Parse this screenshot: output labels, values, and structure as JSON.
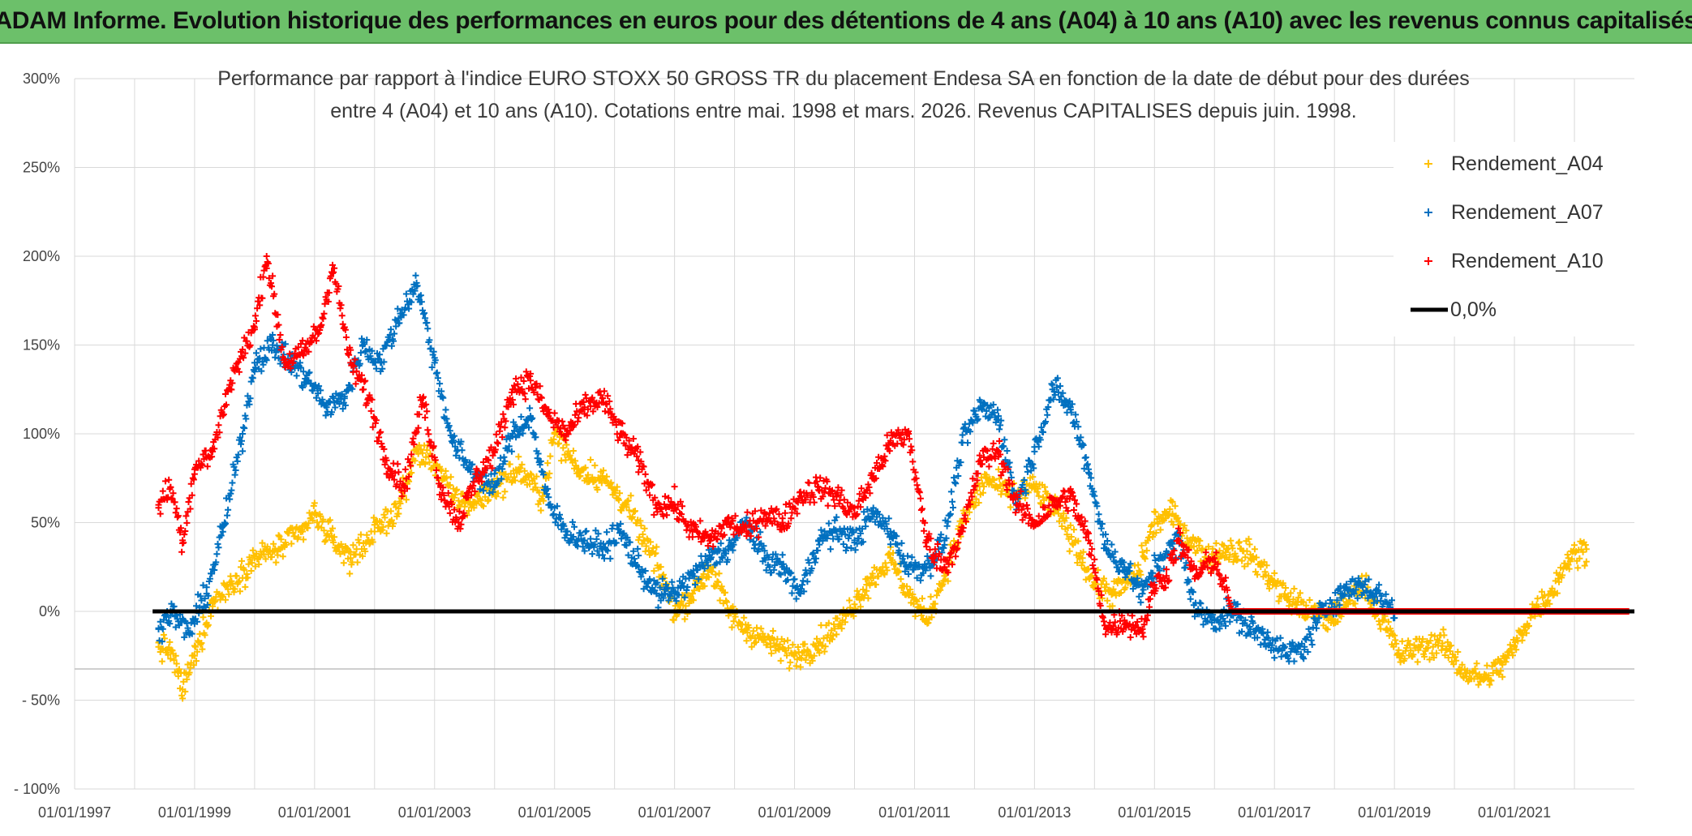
{
  "header": {
    "title": "ADAM Informe. Evolution historique des performances en euros pour des détentions de 4 ans (A04) à 10 ans (A10) avec les revenus connus capitalisés"
  },
  "colors": {
    "banner": "#6cc06a",
    "A04": "#ffc000",
    "A07": "#0070c0",
    "A10": "#ff0000",
    "zero": "#000000"
  },
  "chart_data": {
    "type": "scatter",
    "title_line1": "Performance par rapport à l'indice EURO STOXX 50 GROSS TR  du placement Endesa SA en fonction de la date de début pour des durées",
    "title_line2": "entre 4 (A04) et 10 ans (A10). Cotations entre mai. 1998 et mars. 2026. Revenus CAPITALISES depuis juin. 1998.",
    "xlabel": "",
    "ylabel": "",
    "xlim": [
      1997.0,
      2023.0
    ],
    "ylim": [
      -100,
      300
    ],
    "y_ticks": [
      {
        "value": 300,
        "label": "300%"
      },
      {
        "value": 250,
        "label": "250%"
      },
      {
        "value": 200,
        "label": "200%"
      },
      {
        "value": 150,
        "label": "150%"
      },
      {
        "value": 100,
        "label": "100%"
      },
      {
        "value": 50,
        "label": "50%"
      },
      {
        "value": 0,
        "label": "0%"
      },
      {
        "value": -50,
        "label": "- 50%"
      },
      {
        "value": -100,
        "label": "- 100%"
      }
    ],
    "x_ticks": [
      {
        "value": 1997,
        "label": "01/01/1997"
      },
      {
        "value": 1999,
        "label": "01/01/1999"
      },
      {
        "value": 2001,
        "label": "01/01/2001"
      },
      {
        "value": 2003,
        "label": "01/01/2003"
      },
      {
        "value": 2005,
        "label": "01/01/2005"
      },
      {
        "value": 2007,
        "label": "01/01/2007"
      },
      {
        "value": 2009,
        "label": "01/01/2009"
      },
      {
        "value": 2011,
        "label": "01/01/2011"
      },
      {
        "value": 2013,
        "label": "01/01/2013"
      },
      {
        "value": 2015,
        "label": "01/01/2015"
      },
      {
        "value": 2017,
        "label": "01/01/2017"
      },
      {
        "value": 2019,
        "label": "01/01/2019"
      },
      {
        "value": 2021,
        "label": "01/01/2021"
      }
    ],
    "series": [
      {
        "name": "Rendement_A04",
        "color": "#ffc000",
        "points": [
          [
            1998.4,
            -20
          ],
          [
            1998.6,
            -22
          ],
          [
            1998.8,
            -44
          ],
          [
            1999.0,
            -25
          ],
          [
            1999.3,
            5
          ],
          [
            1999.6,
            15
          ],
          [
            2000.0,
            30
          ],
          [
            2000.4,
            35
          ],
          [
            2000.8,
            45
          ],
          [
            2001.0,
            55
          ],
          [
            2001.3,
            40
          ],
          [
            2001.6,
            30
          ],
          [
            2002.0,
            45
          ],
          [
            2002.4,
            58
          ],
          [
            2002.7,
            90
          ],
          [
            2003.0,
            85
          ],
          [
            2003.3,
            65
          ],
          [
            2003.6,
            60
          ],
          [
            2004.0,
            70
          ],
          [
            2004.4,
            80
          ],
          [
            2004.8,
            65
          ],
          [
            2005.0,
            100
          ],
          [
            2005.4,
            80
          ],
          [
            2005.8,
            75
          ],
          [
            2006.2,
            60
          ],
          [
            2006.5,
            40
          ],
          [
            2006.8,
            20
          ],
          [
            2007.0,
            0
          ],
          [
            2007.3,
            10
          ],
          [
            2007.6,
            25
          ],
          [
            2007.9,
            0
          ],
          [
            2008.2,
            -10
          ],
          [
            2008.6,
            -18
          ],
          [
            2009.0,
            -25
          ],
          [
            2009.4,
            -18
          ],
          [
            2009.8,
            -5
          ],
          [
            2010.2,
            15
          ],
          [
            2010.6,
            30
          ],
          [
            2010.9,
            10
          ],
          [
            2011.2,
            -5
          ],
          [
            2011.5,
            20
          ],
          [
            2011.8,
            50
          ],
          [
            2012.2,
            75
          ],
          [
            2012.6,
            65
          ],
          [
            2013.0,
            70
          ],
          [
            2013.4,
            55
          ],
          [
            2013.8,
            30
          ],
          [
            2014.0,
            15
          ],
          [
            2014.3,
            10
          ],
          [
            2014.7,
            20
          ],
          [
            2015.0,
            50
          ],
          [
            2015.3,
            55
          ],
          [
            2015.6,
            40
          ],
          [
            2015.9,
            30
          ],
          [
            2016.2,
            35
          ],
          [
            2016.6,
            32
          ],
          [
            2016.9,
            20
          ],
          [
            2017.2,
            8
          ],
          [
            2017.6,
            0
          ],
          [
            2017.9,
            -5
          ],
          [
            2018.2,
            5
          ],
          [
            2018.5,
            15
          ],
          [
            2018.8,
            -5
          ],
          [
            2019.1,
            -25
          ],
          [
            2019.4,
            -20
          ],
          [
            2019.8,
            -18
          ],
          [
            2020.2,
            -35
          ],
          [
            2020.5,
            -38
          ],
          [
            2020.8,
            -30
          ],
          [
            2021.0,
            -20
          ],
          [
            2021.3,
            0
          ],
          [
            2021.6,
            10
          ],
          [
            2021.9,
            30
          ],
          [
            2022.2,
            35
          ]
        ]
      },
      {
        "name": "Rendement_A07",
        "color": "#0070c0",
        "points": [
          [
            1998.4,
            -10
          ],
          [
            1998.6,
            0
          ],
          [
            1998.9,
            -12
          ],
          [
            1999.2,
            10
          ],
          [
            1999.5,
            50
          ],
          [
            1999.8,
            100
          ],
          [
            2000.0,
            140
          ],
          [
            2000.3,
            150
          ],
          [
            2000.6,
            140
          ],
          [
            2000.9,
            130
          ],
          [
            2001.2,
            115
          ],
          [
            2001.5,
            120
          ],
          [
            2001.8,
            150
          ],
          [
            2002.1,
            140
          ],
          [
            2002.4,
            165
          ],
          [
            2002.7,
            185
          ],
          [
            2003.0,
            140
          ],
          [
            2003.3,
            95
          ],
          [
            2003.6,
            80
          ],
          [
            2004.0,
            70
          ],
          [
            2004.3,
            100
          ],
          [
            2004.6,
            110
          ],
          [
            2004.9,
            60
          ],
          [
            2005.2,
            45
          ],
          [
            2005.5,
            40
          ],
          [
            2005.8,
            35
          ],
          [
            2006.1,
            45
          ],
          [
            2006.4,
            25
          ],
          [
            2006.7,
            10
          ],
          [
            2007.0,
            10
          ],
          [
            2007.3,
            20
          ],
          [
            2007.6,
            30
          ],
          [
            2007.9,
            35
          ],
          [
            2008.2,
            50
          ],
          [
            2008.5,
            30
          ],
          [
            2008.8,
            25
          ],
          [
            2009.1,
            10
          ],
          [
            2009.4,
            40
          ],
          [
            2009.7,
            45
          ],
          [
            2010.0,
            40
          ],
          [
            2010.3,
            55
          ],
          [
            2010.6,
            45
          ],
          [
            2010.9,
            25
          ],
          [
            2011.2,
            25
          ],
          [
            2011.5,
            40
          ],
          [
            2011.8,
            95
          ],
          [
            2012.1,
            115
          ],
          [
            2012.4,
            110
          ],
          [
            2012.7,
            60
          ],
          [
            2013.0,
            90
          ],
          [
            2013.3,
            125
          ],
          [
            2013.6,
            115
          ],
          [
            2013.9,
            80
          ],
          [
            2014.2,
            35
          ],
          [
            2014.5,
            25
          ],
          [
            2014.8,
            10
          ],
          [
            2015.1,
            30
          ],
          [
            2015.4,
            40
          ],
          [
            2015.7,
            0
          ],
          [
            2016.0,
            -5
          ],
          [
            2016.3,
            0
          ],
          [
            2016.6,
            -10
          ],
          [
            2016.9,
            -15
          ],
          [
            2017.2,
            -25
          ],
          [
            2017.5,
            -20
          ],
          [
            2017.8,
            0
          ],
          [
            2018.1,
            10
          ],
          [
            2018.4,
            15
          ],
          [
            2018.7,
            10
          ],
          [
            2019.0,
            0
          ]
        ]
      },
      {
        "name": "Rendement_A10",
        "color": "#ff0000",
        "points": [
          [
            1998.4,
            60
          ],
          [
            1998.6,
            70
          ],
          [
            1998.8,
            40
          ],
          [
            1999.0,
            80
          ],
          [
            1999.3,
            90
          ],
          [
            1999.6,
            130
          ],
          [
            2000.0,
            160
          ],
          [
            2000.2,
            200
          ],
          [
            2000.5,
            140
          ],
          [
            2000.8,
            145
          ],
          [
            2001.1,
            160
          ],
          [
            2001.3,
            195
          ],
          [
            2001.6,
            140
          ],
          [
            2001.9,
            120
          ],
          [
            2002.2,
            85
          ],
          [
            2002.5,
            70
          ],
          [
            2002.8,
            120
          ],
          [
            2003.1,
            70
          ],
          [
            2003.4,
            50
          ],
          [
            2003.7,
            75
          ],
          [
            2004.0,
            90
          ],
          [
            2004.3,
            125
          ],
          [
            2004.6,
            130
          ],
          [
            2004.9,
            110
          ],
          [
            2005.2,
            100
          ],
          [
            2005.5,
            115
          ],
          [
            2005.8,
            120
          ],
          [
            2006.1,
            100
          ],
          [
            2006.4,
            85
          ],
          [
            2006.7,
            60
          ],
          [
            2007.0,
            60
          ],
          [
            2007.3,
            45
          ],
          [
            2007.6,
            40
          ],
          [
            2007.9,
            50
          ],
          [
            2008.2,
            45
          ],
          [
            2008.5,
            55
          ],
          [
            2008.8,
            50
          ],
          [
            2009.1,
            65
          ],
          [
            2009.4,
            70
          ],
          [
            2009.7,
            65
          ],
          [
            2010.0,
            55
          ],
          [
            2010.3,
            75
          ],
          [
            2010.6,
            95
          ],
          [
            2010.9,
            100
          ],
          [
            2011.2,
            40
          ],
          [
            2011.5,
            25
          ],
          [
            2011.8,
            45
          ],
          [
            2012.1,
            85
          ],
          [
            2012.4,
            90
          ],
          [
            2012.7,
            60
          ],
          [
            2013.0,
            50
          ],
          [
            2013.3,
            60
          ],
          [
            2013.6,
            65
          ],
          [
            2013.9,
            40
          ],
          [
            2014.2,
            -10
          ],
          [
            2014.5,
            -5
          ],
          [
            2014.8,
            -10
          ],
          [
            2015.0,
            15
          ],
          [
            2015.2,
            20
          ],
          [
            2015.4,
            40
          ],
          [
            2015.7,
            20
          ],
          [
            2016.0,
            30
          ],
          [
            2016.3,
            0
          ],
          [
            2017.0,
            0
          ],
          [
            2018.0,
            0
          ],
          [
            2019.0,
            0
          ],
          [
            2020.0,
            0
          ],
          [
            2021.0,
            0
          ],
          [
            2022.0,
            0
          ],
          [
            2022.9,
            0
          ]
        ]
      }
    ],
    "zero_line": {
      "name": "0,0%",
      "from": 1998.3,
      "to": 2023.0,
      "value": 0
    },
    "legend": [
      {
        "label": "Rendement_A04",
        "color": "#ffc000",
        "marker": "plus"
      },
      {
        "label": "Rendement_A07",
        "color": "#0070c0",
        "marker": "plus"
      },
      {
        "label": "Rendement_A10",
        "color": "#ff0000",
        "marker": "plus"
      },
      {
        "label": "0,0%",
        "color": "#000000",
        "marker": "line"
      }
    ],
    "legend_position": "top-right"
  }
}
